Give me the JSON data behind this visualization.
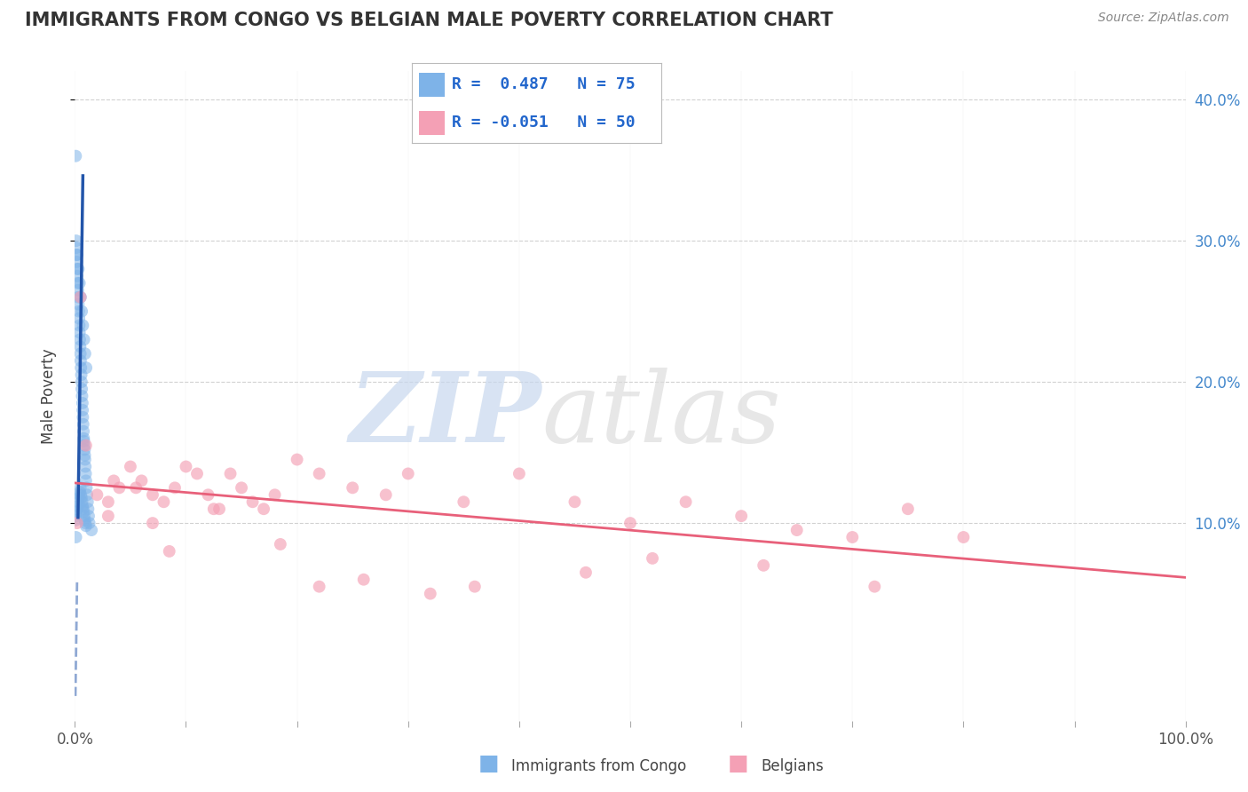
{
  "title": "IMMIGRANTS FROM CONGO VS BELGIAN MALE POVERTY CORRELATION CHART",
  "source": "Source: ZipAtlas.com",
  "ylabel": "Male Poverty",
  "legend_label_blue": "Immigrants from Congo",
  "legend_label_pink": "Belgians",
  "blue_color": "#7EB3E8",
  "pink_color": "#F4A0B5",
  "blue_line_color": "#2255AA",
  "pink_line_color": "#E8607A",
  "background_color": "#FFFFFF",
  "grid_color": "#CCCCCC",
  "blue_r": "0.487",
  "blue_n": "75",
  "pink_r": "-0.051",
  "pink_n": "50",
  "blue_dots_x": [
    0.08,
    0.12,
    0.15,
    0.18,
    0.2,
    0.22,
    0.25,
    0.28,
    0.3,
    0.32,
    0.35,
    0.38,
    0.4,
    0.42,
    0.45,
    0.48,
    0.5,
    0.52,
    0.55,
    0.58,
    0.6,
    0.62,
    0.65,
    0.68,
    0.7,
    0.72,
    0.75,
    0.78,
    0.8,
    0.82,
    0.85,
    0.88,
    0.9,
    0.92,
    0.95,
    0.98,
    1.0,
    1.05,
    1.1,
    1.15,
    1.2,
    1.25,
    1.3,
    0.05,
    0.1,
    0.15,
    0.2,
    0.25,
    0.3,
    0.35,
    0.4,
    0.45,
    0.5,
    0.55,
    0.6,
    0.65,
    0.7,
    0.75,
    0.8,
    0.85,
    0.9,
    0.95,
    1.0,
    0.12,
    0.22,
    0.32,
    0.42,
    0.52,
    0.62,
    0.72,
    0.82,
    0.92,
    1.02,
    1.5,
    0.1
  ],
  "blue_dots_y": [
    36.0,
    29.5,
    29.0,
    28.5,
    28.0,
    27.5,
    27.0,
    26.5,
    26.0,
    25.5,
    25.0,
    24.5,
    24.0,
    23.5,
    23.0,
    22.5,
    22.0,
    21.5,
    21.0,
    20.5,
    20.0,
    19.5,
    19.0,
    18.5,
    18.0,
    17.5,
    17.0,
    16.5,
    16.0,
    15.8,
    15.5,
    15.2,
    14.8,
    14.5,
    14.0,
    13.5,
    13.0,
    12.5,
    12.0,
    11.5,
    11.0,
    10.5,
    10.0,
    10.2,
    10.5,
    10.8,
    11.0,
    11.2,
    11.5,
    11.8,
    12.0,
    12.2,
    12.5,
    12.0,
    11.8,
    11.5,
    11.2,
    11.0,
    10.8,
    10.5,
    10.2,
    10.0,
    9.8,
    30.0,
    29.0,
    28.0,
    27.0,
    26.0,
    25.0,
    24.0,
    23.0,
    22.0,
    21.0,
    9.5,
    9.0
  ],
  "pink_dots_x": [
    0.5,
    1.0,
    2.0,
    3.0,
    4.0,
    5.0,
    6.0,
    7.0,
    8.0,
    9.0,
    10.0,
    11.0,
    12.0,
    13.0,
    14.0,
    15.0,
    16.0,
    17.0,
    18.0,
    20.0,
    22.0,
    25.0,
    28.0,
    30.0,
    35.0,
    40.0,
    45.0,
    50.0,
    55.0,
    60.0,
    65.0,
    70.0,
    75.0,
    80.0,
    3.5,
    5.5,
    8.5,
    12.5,
    18.5,
    26.0,
    36.0,
    46.0,
    3.0,
    7.0,
    22.0,
    32.0,
    52.0,
    62.0,
    72.0,
    0.2
  ],
  "pink_dots_y": [
    26.0,
    15.5,
    12.0,
    11.5,
    12.5,
    14.0,
    13.0,
    12.0,
    11.5,
    12.5,
    14.0,
    13.5,
    12.0,
    11.0,
    13.5,
    12.5,
    11.5,
    11.0,
    12.0,
    14.5,
    13.5,
    12.5,
    12.0,
    13.5,
    11.5,
    13.5,
    11.5,
    10.0,
    11.5,
    10.5,
    9.5,
    9.0,
    11.0,
    9.0,
    13.0,
    12.5,
    8.0,
    11.0,
    8.5,
    6.0,
    5.5,
    6.5,
    10.5,
    10.0,
    5.5,
    5.0,
    7.5,
    7.0,
    5.5,
    10.0
  ],
  "xlim": [
    0,
    100
  ],
  "ylim": [
    -4,
    42
  ],
  "ytick_values": [
    10,
    20,
    30,
    40
  ],
  "ytick_labels": [
    "10.0%",
    "20.0%",
    "30.0%",
    "40.0%"
  ]
}
